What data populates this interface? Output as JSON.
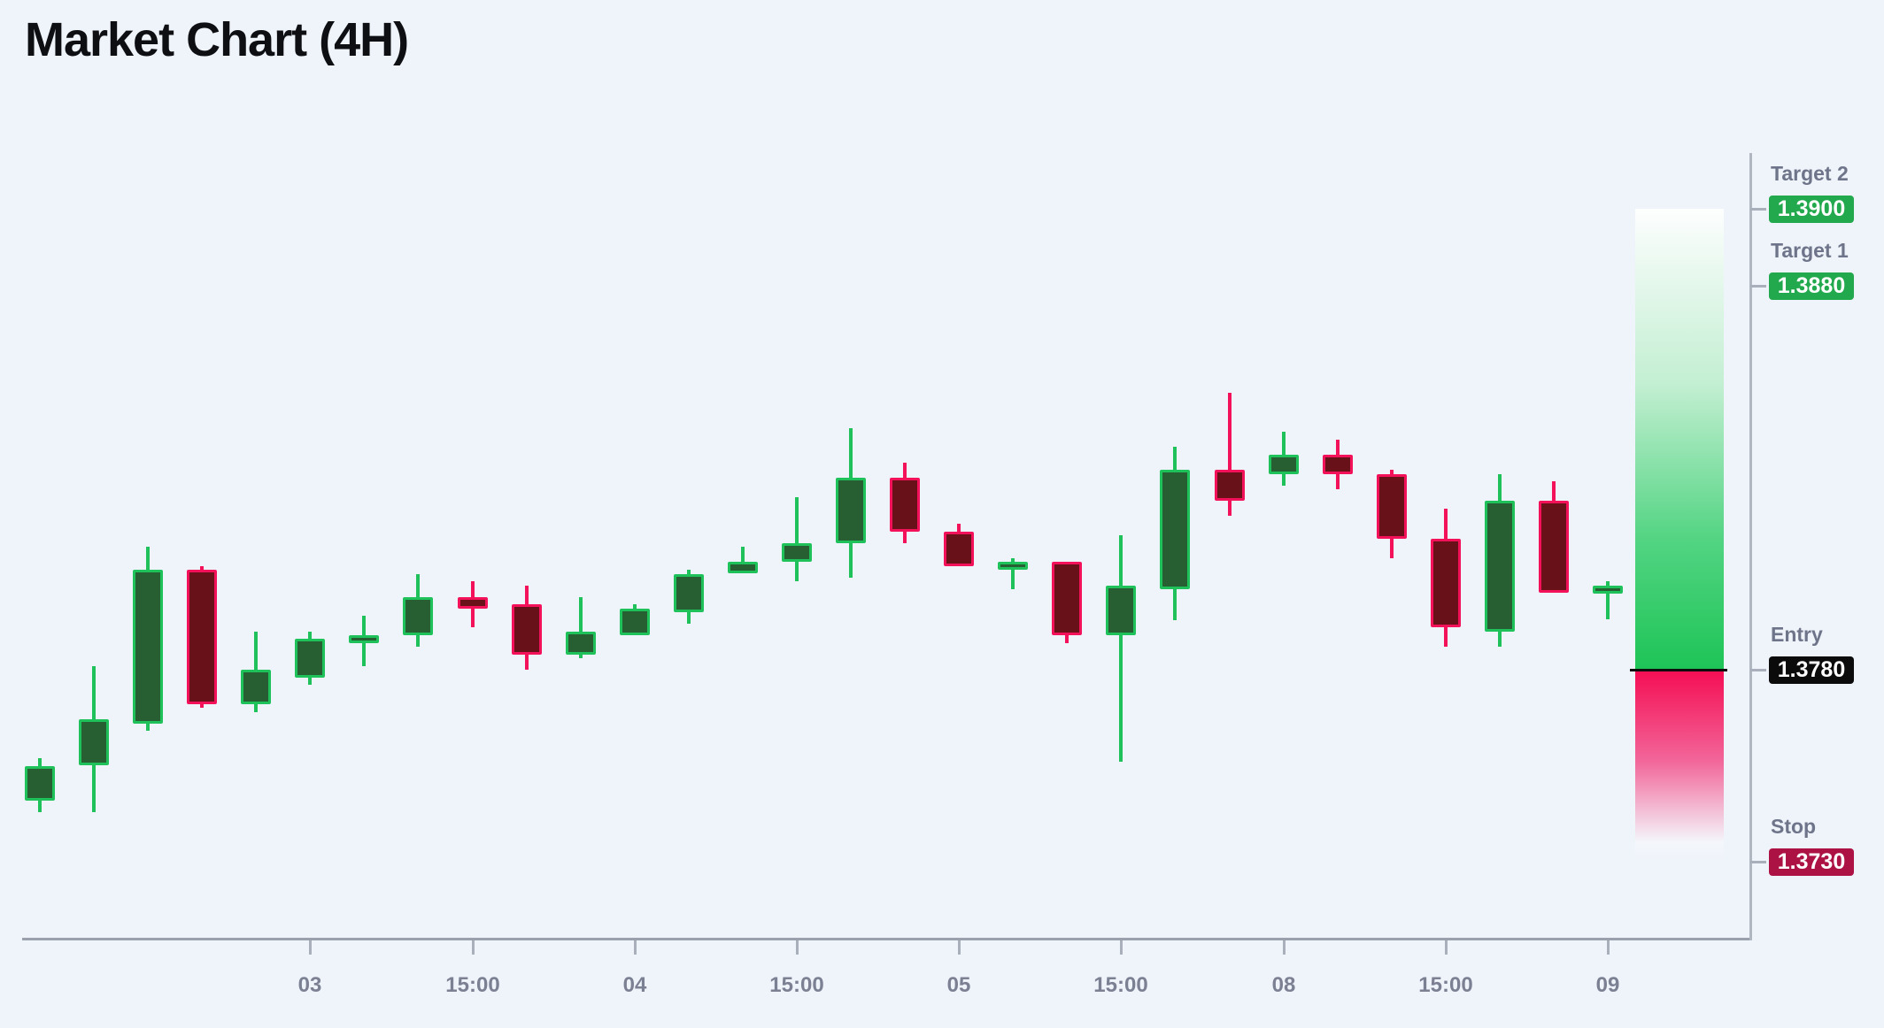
{
  "title": "Market Chart (4H)",
  "colors": {
    "background": "#eff3fa",
    "title_text": "#0d0f12",
    "bull_border": "#1fc25a",
    "bull_fill": "#275f33",
    "bear_border": "#f3125a",
    "bear_fill": "#681119",
    "axis_line": "#9aa1ad",
    "right_axis_line": "#b0b7c1",
    "tick": "#a9b0bb",
    "axis_label": "#7b8093",
    "level_label": "#6e7489",
    "zone_green": "#1ec457",
    "zone_red": "#f50d53",
    "entry_line": "#0d0d0d"
  },
  "levels": [
    {
      "id": "target2",
      "label": "Target 2",
      "value": "1.3900",
      "price": 1.39,
      "badge_bg": "#22a94d",
      "badge_text_color": "#ffffff"
    },
    {
      "id": "target1",
      "label": "Target 1",
      "value": "1.3880",
      "price": 1.388,
      "badge_bg": "#22a94d",
      "badge_text_color": "#ffffff"
    },
    {
      "id": "entry",
      "label": "Entry",
      "value": "1.3780",
      "price": 1.378,
      "badge_bg": "#0b0b0b",
      "badge_text_color": "#ffffff"
    },
    {
      "id": "stop",
      "label": "Stop",
      "value": "1.3730",
      "price": 1.373,
      "badge_bg": "#ad1245",
      "badge_text_color": "#ffffff"
    }
  ],
  "chart_data": {
    "type": "candlestick",
    "title": "Market Chart (4H)",
    "timeframe": "4H",
    "grid": false,
    "price_axis": {
      "entry": 1.378,
      "target1": 1.388,
      "target2": 1.39,
      "stop": 1.373
    },
    "y_range": [
      1.37,
      1.392
    ],
    "zones": [
      {
        "type": "profit",
        "from_level": "entry",
        "to_level": "target2",
        "gradient": "white-to-green"
      },
      {
        "type": "loss",
        "from_level": "entry",
        "to_level": "stop",
        "gradient": "red-to-white"
      }
    ],
    "x_tick_labels": [
      {
        "candle_index": 5,
        "label": "03"
      },
      {
        "candle_index": 8,
        "label": "15:00"
      },
      {
        "candle_index": 11,
        "label": "04"
      },
      {
        "candle_index": 14,
        "label": "15:00"
      },
      {
        "candle_index": 17,
        "label": "05"
      },
      {
        "candle_index": 20,
        "label": "15:00"
      },
      {
        "candle_index": 23,
        "label": "08"
      },
      {
        "candle_index": 26,
        "label": "15:00"
      },
      {
        "candle_index": 29,
        "label": "09"
      }
    ],
    "candles": [
      {
        "o": 1.3746,
        "h": 1.3757,
        "l": 1.3743,
        "c": 1.3755
      },
      {
        "o": 1.3755,
        "h": 1.3781,
        "l": 1.3743,
        "c": 1.3767
      },
      {
        "o": 1.3766,
        "h": 1.3812,
        "l": 1.3764,
        "c": 1.3806
      },
      {
        "o": 1.3806,
        "h": 1.3807,
        "l": 1.377,
        "c": 1.3771
      },
      {
        "o": 1.3771,
        "h": 1.379,
        "l": 1.3769,
        "c": 1.378
      },
      {
        "o": 1.3778,
        "h": 1.379,
        "l": 1.3776,
        "c": 1.3788
      },
      {
        "o": 1.3788,
        "h": 1.3794,
        "l": 1.3781,
        "c": 1.3789
      },
      {
        "o": 1.3789,
        "h": 1.3805,
        "l": 1.3786,
        "c": 1.3799
      },
      {
        "o": 1.3799,
        "h": 1.3803,
        "l": 1.3791,
        "c": 1.3796
      },
      {
        "o": 1.3797,
        "h": 1.3802,
        "l": 1.378,
        "c": 1.3784
      },
      {
        "o": 1.3784,
        "h": 1.3799,
        "l": 1.3783,
        "c": 1.379
      },
      {
        "o": 1.3789,
        "h": 1.3797,
        "l": 1.3789,
        "c": 1.3796
      },
      {
        "o": 1.3795,
        "h": 1.3806,
        "l": 1.3792,
        "c": 1.3805
      },
      {
        "o": 1.3805,
        "h": 1.3812,
        "l": 1.3805,
        "c": 1.3808
      },
      {
        "o": 1.3808,
        "h": 1.3825,
        "l": 1.3803,
        "c": 1.3813
      },
      {
        "o": 1.3813,
        "h": 1.3843,
        "l": 1.3804,
        "c": 1.383
      },
      {
        "o": 1.383,
        "h": 1.3834,
        "l": 1.3813,
        "c": 1.3816
      },
      {
        "o": 1.3816,
        "h": 1.3818,
        "l": 1.3807,
        "c": 1.3807
      },
      {
        "o": 1.3807,
        "h": 1.3809,
        "l": 1.3801,
        "c": 1.3808
      },
      {
        "o": 1.3808,
        "h": 1.3808,
        "l": 1.3787,
        "c": 1.3789
      },
      {
        "o": 1.3789,
        "h": 1.3815,
        "l": 1.3756,
        "c": 1.3802
      },
      {
        "o": 1.3801,
        "h": 1.3838,
        "l": 1.3793,
        "c": 1.3832
      },
      {
        "o": 1.3832,
        "h": 1.3852,
        "l": 1.382,
        "c": 1.3824
      },
      {
        "o": 1.3831,
        "h": 1.3842,
        "l": 1.3828,
        "c": 1.3836
      },
      {
        "o": 1.3836,
        "h": 1.384,
        "l": 1.3827,
        "c": 1.3831
      },
      {
        "o": 1.3831,
        "h": 1.3832,
        "l": 1.3809,
        "c": 1.3814
      },
      {
        "o": 1.3814,
        "h": 1.3822,
        "l": 1.3786,
        "c": 1.3791
      },
      {
        "o": 1.379,
        "h": 1.3831,
        "l": 1.3786,
        "c": 1.3824
      },
      {
        "o": 1.3824,
        "h": 1.3829,
        "l": 1.38,
        "c": 1.38
      },
      {
        "o": 1.38,
        "h": 1.3803,
        "l": 1.3793,
        "c": 1.3802
      }
    ]
  }
}
